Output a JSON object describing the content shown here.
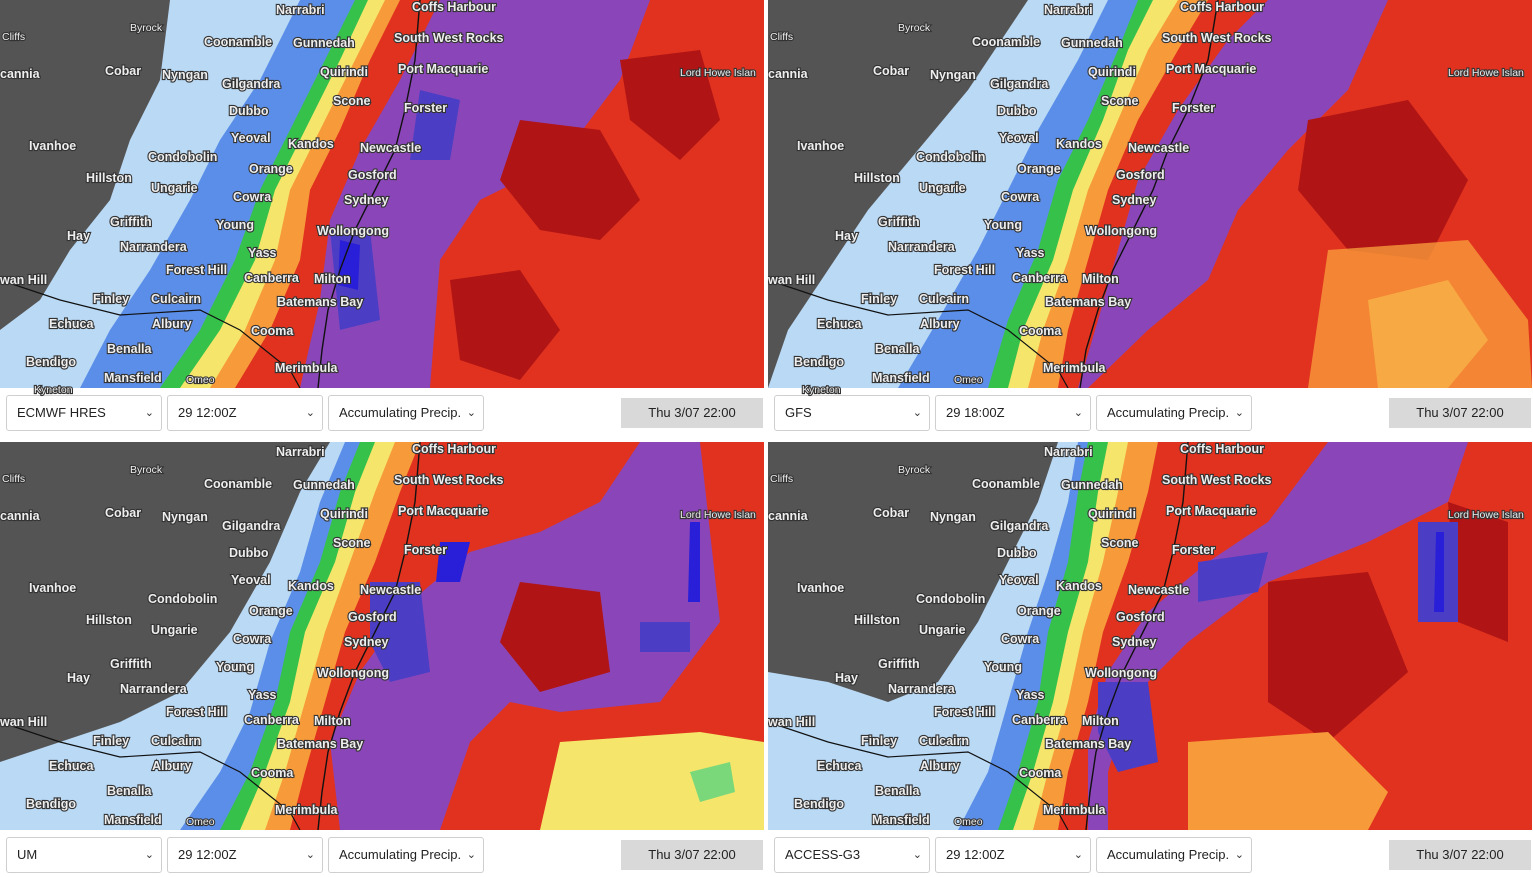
{
  "colors": {
    "land": "#545454",
    "light_blue": "#b9d9f5",
    "blue": "#5b8ee8",
    "green": "#36c24a",
    "yellow": "#f5e66b",
    "orange": "#f79a3a",
    "red": "#e0321e",
    "dark_red": "#b01414",
    "purple": "#8a46b8",
    "indigo": "#4c3ec4",
    "deep_blue": "#2a1fd8"
  },
  "place_labels": [
    "Narrabri",
    "Byrock",
    "Coffs Harbour",
    "Cliffs",
    "Coonamble",
    "Gunnedah",
    "South West Rocks",
    "cannia",
    "Cobar",
    "Nyngan",
    "Gilgandra",
    "Quirindi",
    "Port Macquarie",
    "Lord Howe Islan",
    "Dubbo",
    "Scone",
    "Forster",
    "Yeoval",
    "Ivanhoe",
    "Kandos",
    "Newcastle",
    "Condobolin",
    "Orange",
    "Gosford",
    "Hillston",
    "Ungarie",
    "Cowra",
    "Sydney",
    "Griffith",
    "Young",
    "Hay",
    "Narrandera",
    "Wollongong",
    "Yass",
    "Forest Hill",
    "Canberra",
    "Milton",
    "wan Hill",
    "Finley",
    "Culcairn",
    "Batemans Bay",
    "Echuca",
    "Albury",
    "Cooma",
    "Benalla",
    "Bendigo",
    "Merimbula",
    "Mansfield",
    "Omeo",
    "Kyneton"
  ],
  "panels": [
    {
      "model": "ECMWF HRES",
      "run": "29 12:00Z",
      "parameter": "Accumulating Precip.",
      "valid_time": "Thu 3/07 22:00"
    },
    {
      "model": "GFS",
      "run": "29 18:00Z",
      "parameter": "Accumulating Precip.",
      "valid_time": "Thu 3/07 22:00"
    },
    {
      "model": "UM",
      "run": "29 12:00Z",
      "parameter": "Accumulating Precip.",
      "valid_time": "Thu 3/07 22:00"
    },
    {
      "model": "ACCESS-G3",
      "run": "29 12:00Z",
      "parameter": "Accumulating Precip.",
      "valid_time": "Thu 3/07 22:00"
    }
  ],
  "icons": {
    "dropdown": "chevron-down-icon"
  }
}
